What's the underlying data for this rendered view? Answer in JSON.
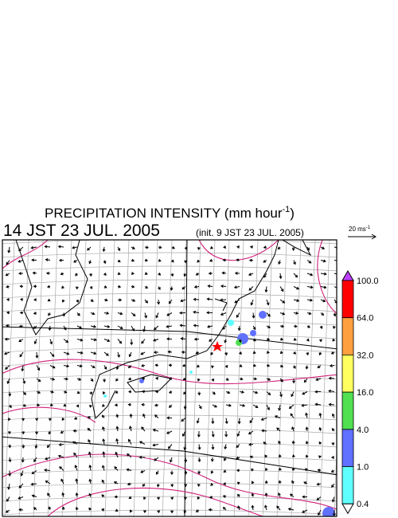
{
  "header": {
    "title": "PRECIPITATION INTENSITY (mm hour",
    "title_exponent": "-1",
    "title_close": ")",
    "valid_time": "14 JST 23 JUL. 2005",
    "init_time": "(init. 9 JST 23 JUL. 2005)"
  },
  "wind_scale": {
    "label": "20 ms",
    "exponent": "-1"
  },
  "colorbar": {
    "levels": [
      {
        "label": "100.0",
        "color": "#ff0000"
      },
      {
        "label": "64.0",
        "color": "#ffa040"
      },
      {
        "label": "32.0",
        "color": "#ffff60"
      },
      {
        "label": "16.0",
        "color": "#50e050"
      },
      {
        "label": "4.0",
        "color": "#6070ff"
      },
      {
        "label": "1.0",
        "color": "#60ffff"
      },
      {
        "label": "0.4",
        "color": "#ffffff"
      }
    ],
    "over_color": "#c040ff"
  }
}
